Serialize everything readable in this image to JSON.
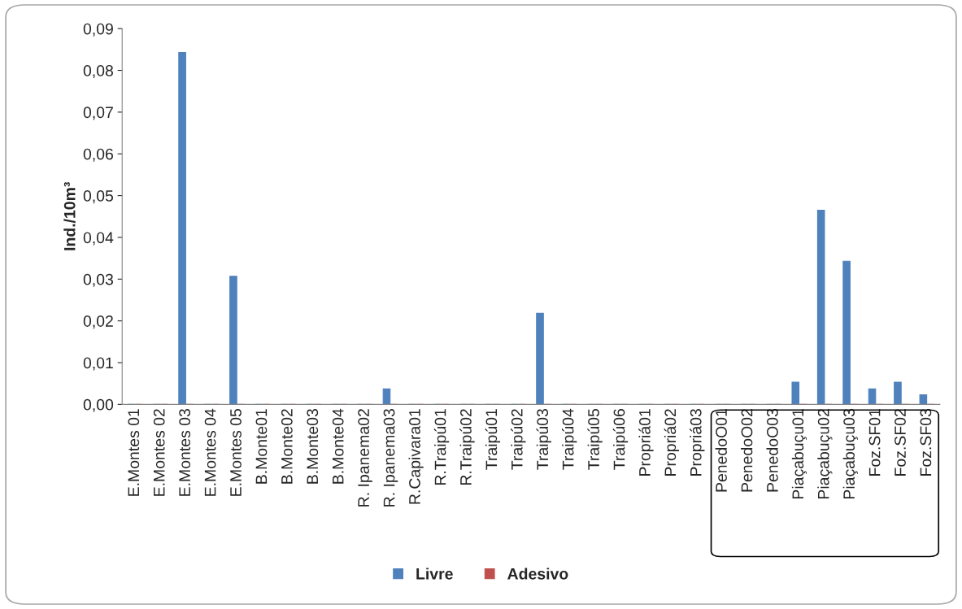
{
  "chart_data": {
    "type": "bar",
    "ylabel": "Ind./10m³",
    "categories": [
      "E.Montes 01",
      "E.Montes 02",
      "E.Montes 03",
      "E.Montes 04",
      "E.Montes 05",
      "B.Monte01",
      "B.Monte02",
      "B.Monte03",
      "B.Monte04",
      "R. Ipanema02",
      "R. Ipanema03",
      "R.Capivara01",
      "R.Traipú01",
      "R.Traipú02",
      "Traipú01",
      "Traipú02",
      "Traipú03",
      "Traipú04",
      "Traipú05",
      "Traipú06",
      "Propriá01",
      "Propriá02",
      "Propriá03",
      "PenedoO01",
      "PenedoO02",
      "PenedoO03",
      "Piaçabuçu01",
      "Piaçabuçu02",
      "Piaçabuçu03",
      "Foz.SF01",
      "Foz.SF02",
      "Foz.SF03"
    ],
    "series": [
      {
        "name": "Livre",
        "color": "#4f81bd",
        "values": [
          0,
          0,
          0.0843,
          0,
          0.0307,
          0,
          0,
          0,
          0,
          0,
          0.0037,
          0,
          0,
          0,
          0,
          0,
          0.0218,
          0,
          0,
          0,
          0,
          0,
          0,
          0,
          0,
          0,
          0.0053,
          0.0465,
          0.0343,
          0.0037,
          0.0053,
          0.0023
        ]
      },
      {
        "name": "Adesivo",
        "color": "#c0504d",
        "values": [
          0,
          0,
          0,
          0,
          0,
          0,
          0,
          0,
          0,
          0,
          0,
          0,
          0,
          0,
          0,
          0,
          0,
          0,
          0,
          0,
          0,
          0,
          0,
          0,
          0,
          0,
          0,
          0,
          0,
          0,
          0,
          0
        ]
      }
    ],
    "ylim": [
      0,
      0.09
    ],
    "yticks": [
      {
        "value": 0,
        "label": "0,00"
      },
      {
        "value": 0.01,
        "label": "0,01"
      },
      {
        "value": 0.02,
        "label": "0,02"
      },
      {
        "value": 0.03,
        "label": "0,03"
      },
      {
        "value": 0.04,
        "label": "0,04"
      },
      {
        "value": 0.05,
        "label": "0,05"
      },
      {
        "value": 0.06,
        "label": "0,06"
      },
      {
        "value": 0.07,
        "label": "0,07"
      },
      {
        "value": 0.08,
        "label": "0,08"
      },
      {
        "value": 0.09,
        "label": "0,09"
      }
    ],
    "grid": false,
    "legend": "bottom"
  }
}
